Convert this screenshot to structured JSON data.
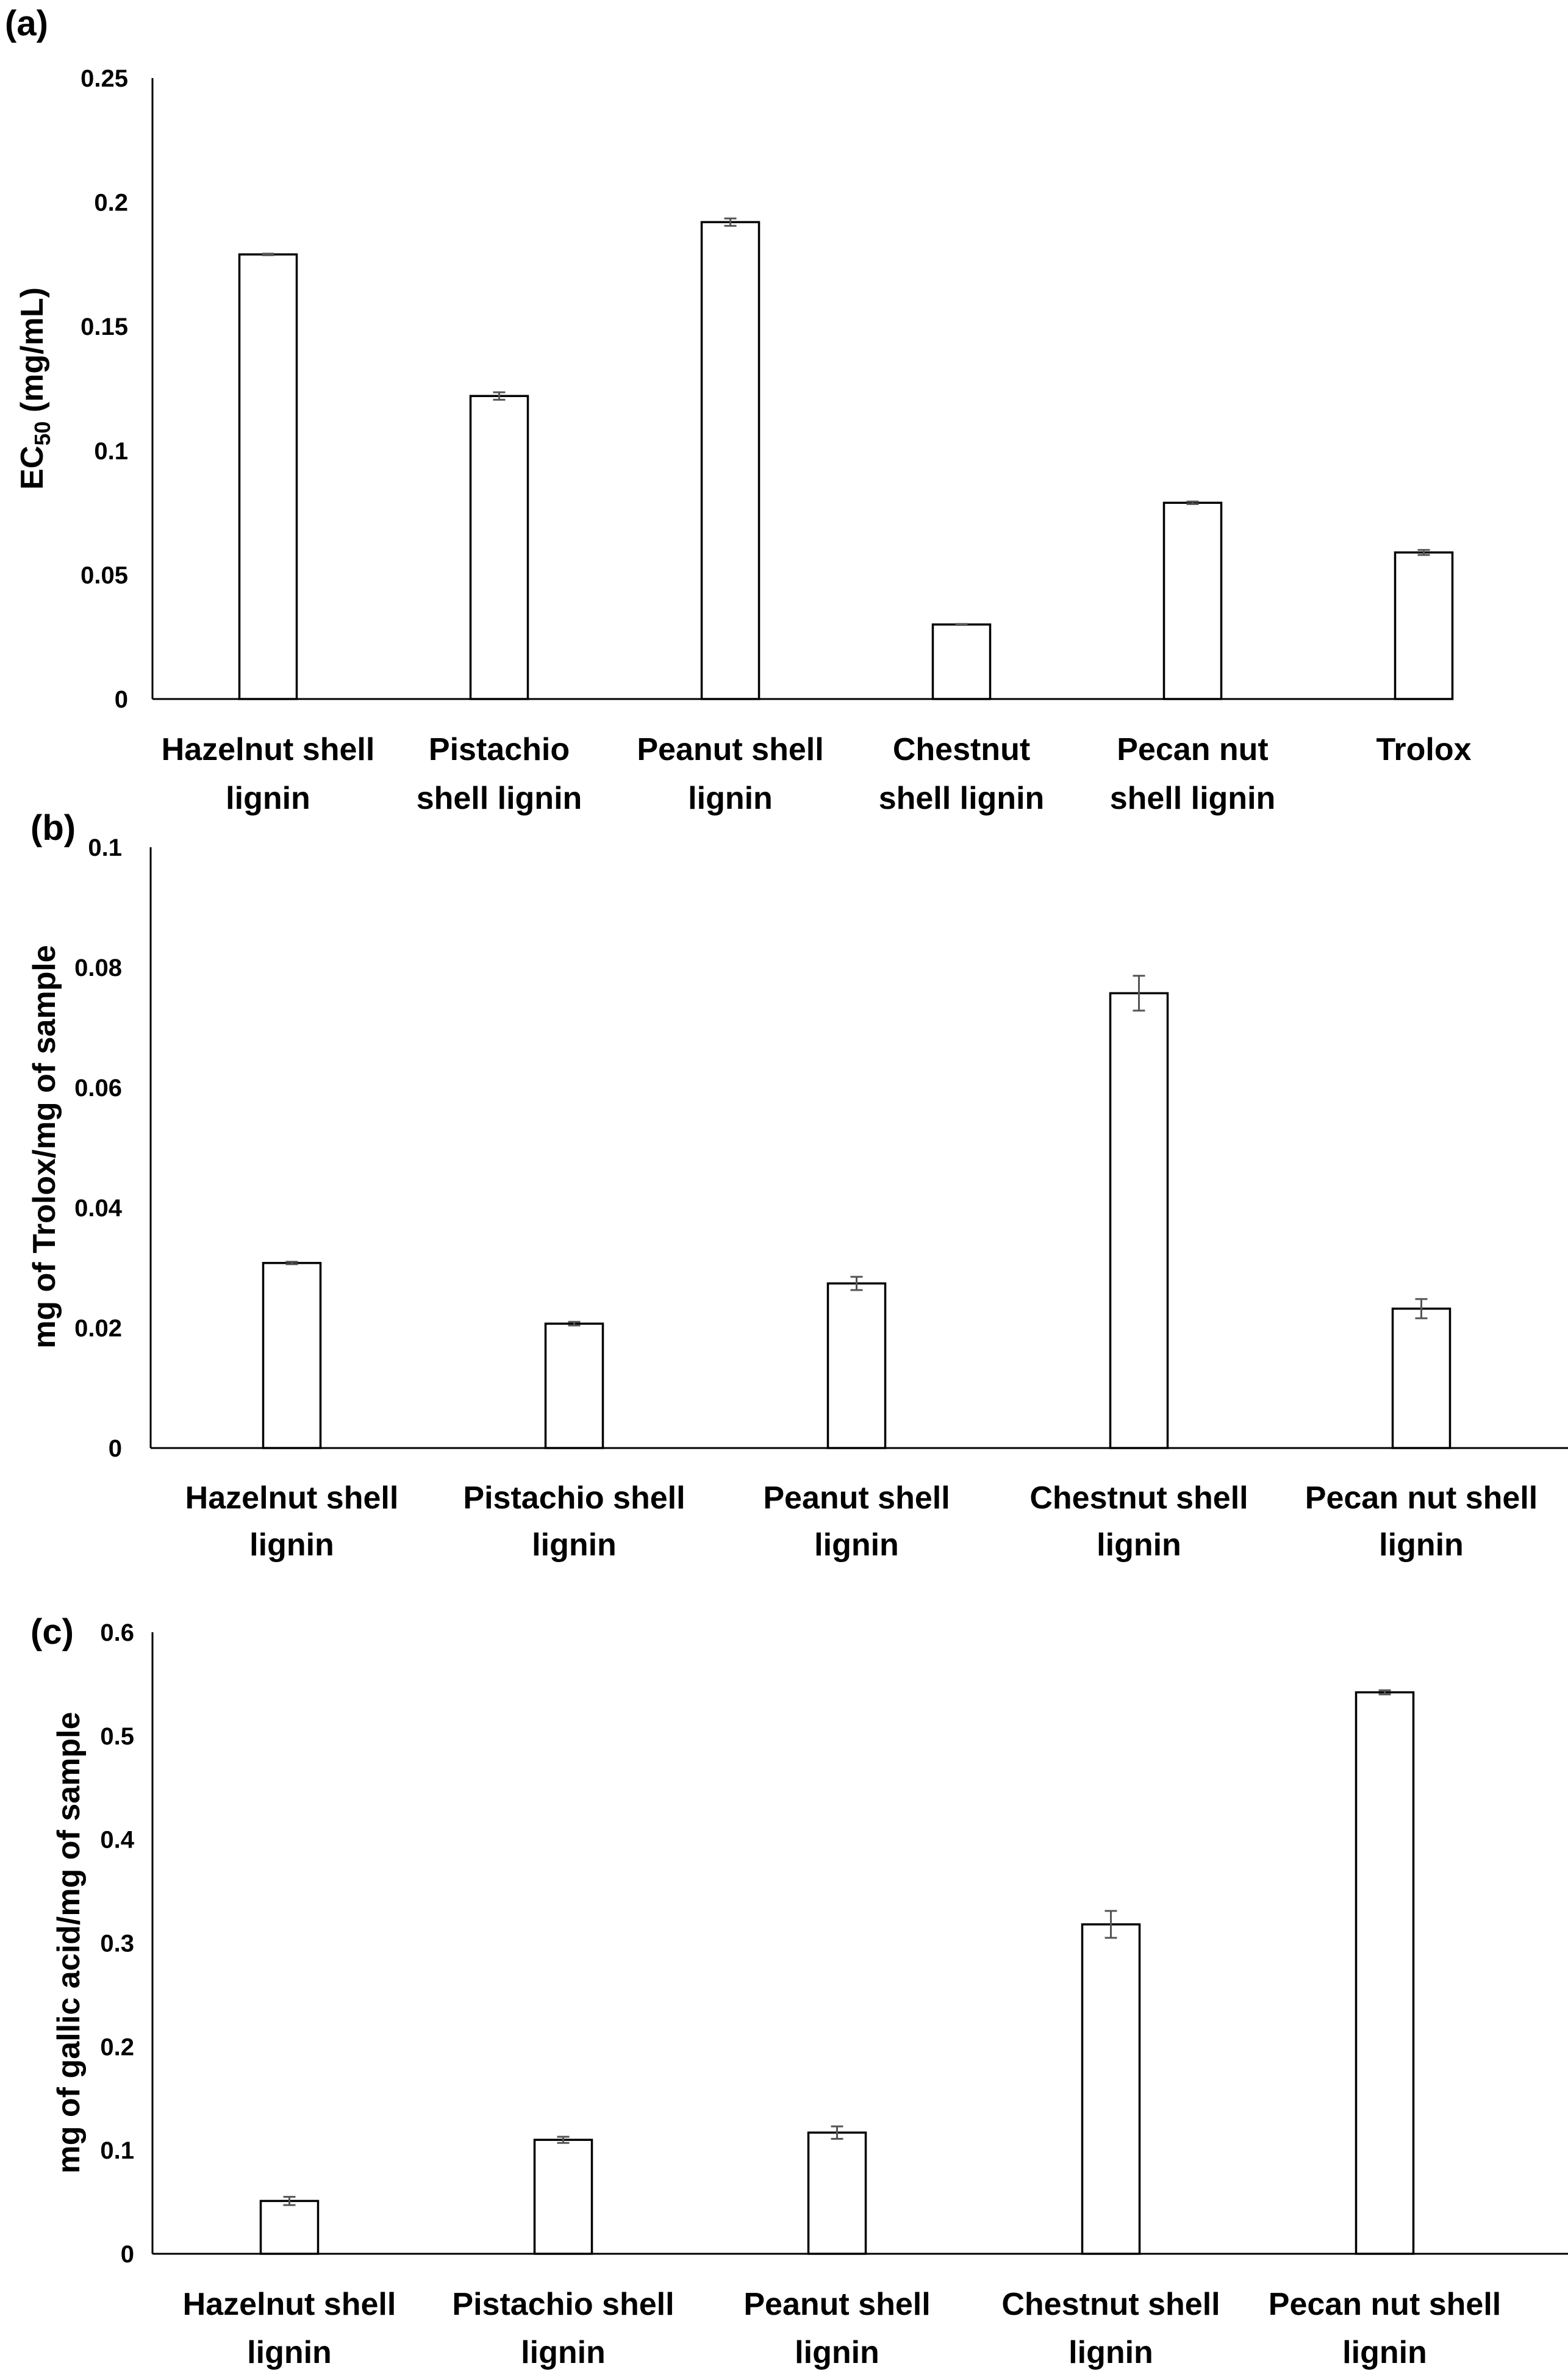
{
  "chart_data": [
    {
      "panel_label": "(a)",
      "type": "bar",
      "title": "",
      "xlabel": "",
      "ylabel": "EC",
      "ylabel_subscript": "50",
      "ylabel_suffix": " (mg/mL)",
      "ylim": [
        0,
        0.25
      ],
      "yticks": [
        "0",
        "0.05",
        "0.1",
        "0.15",
        "0.2",
        "0.25"
      ],
      "grid": false,
      "categories": [
        [
          "Hazelnut shell",
          "lignin"
        ],
        [
          "Pistachio",
          "shell lignin"
        ],
        [
          "Peanut shell",
          "lignin"
        ],
        [
          "Chestnut",
          "shell lignin"
        ],
        [
          "Pecan nut",
          "shell lignin"
        ],
        [
          "Trolox"
        ]
      ],
      "values": [
        0.179,
        0.122,
        0.192,
        0.03,
        0.079,
        0.059
      ],
      "errors": [
        0.0003,
        0.0015,
        0.0015,
        0.0002,
        0.0005,
        0.001
      ]
    },
    {
      "panel_label": "(b)",
      "type": "bar",
      "title": "",
      "xlabel": "",
      "ylabel": "mg of Trolox/mg of sample",
      "ylim": [
        0,
        0.1
      ],
      "yticks": [
        "0",
        "0.02",
        "0.04",
        "0.06",
        "0.08",
        "0.1"
      ],
      "grid": false,
      "categories": [
        [
          "Hazelnut shell",
          "lignin"
        ],
        [
          "Pistachio shell",
          "lignin"
        ],
        [
          "Peanut shell",
          "lignin"
        ],
        [
          "Chestnut shell",
          "lignin"
        ],
        [
          "Pecan nut shell",
          "lignin"
        ]
      ],
      "values": [
        0.0308,
        0.0207,
        0.0274,
        0.0757,
        0.0232
      ],
      "errors": [
        0.0002,
        0.0003,
        0.0011,
        0.0029,
        0.0016
      ]
    },
    {
      "panel_label": "(c)",
      "type": "bar",
      "title": "",
      "xlabel": "",
      "ylabel": "mg of gallic acid/mg of sample",
      "ylim": [
        0,
        0.6
      ],
      "yticks": [
        "0",
        "0.1",
        "0.2",
        "0.3",
        "0.4",
        "0.5",
        "0.6"
      ],
      "grid": false,
      "categories": [
        [
          "Hazelnut shell",
          "lignin"
        ],
        [
          "Pistachio shell",
          "lignin"
        ],
        [
          "Peanut shell",
          "lignin"
        ],
        [
          "Chestnut shell",
          "lignin"
        ],
        [
          "Pecan nut shell",
          "lignin"
        ]
      ],
      "values": [
        0.051,
        0.11,
        0.117,
        0.318,
        0.542
      ],
      "errors": [
        0.004,
        0.003,
        0.006,
        0.013,
        0.002
      ]
    }
  ]
}
